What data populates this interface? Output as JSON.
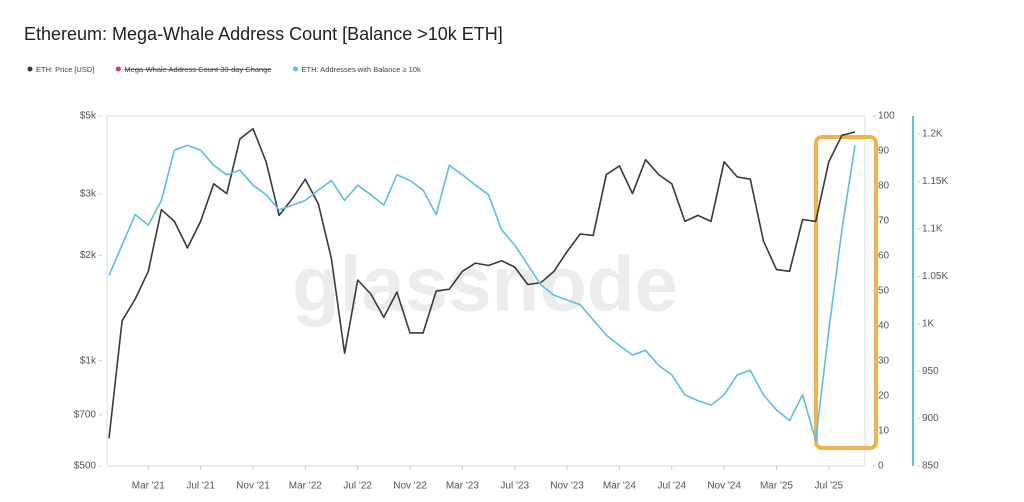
{
  "chart_data": {
    "type": "line",
    "title": "Ethereum: Mega-Whale Address Count [Balance >10k ETH]",
    "watermark": "glassnode",
    "x": [
      "2020-12",
      "2021-01",
      "2021-02",
      "2021-03",
      "2021-04",
      "2021-05",
      "2021-06",
      "2021-07",
      "2021-08",
      "2021-09",
      "2021-10",
      "2021-11",
      "2021-12",
      "2022-01",
      "2022-02",
      "2022-03",
      "2022-04",
      "2022-05",
      "2022-06",
      "2022-07",
      "2022-08",
      "2022-09",
      "2022-10",
      "2022-11",
      "2022-12",
      "2023-01",
      "2023-02",
      "2023-03",
      "2023-04",
      "2023-05",
      "2023-06",
      "2023-07",
      "2023-08",
      "2023-09",
      "2023-10",
      "2023-11",
      "2023-12",
      "2024-01",
      "2024-02",
      "2024-03",
      "2024-04",
      "2024-05",
      "2024-06",
      "2024-07",
      "2024-08",
      "2024-09",
      "2024-10",
      "2024-11",
      "2024-12",
      "2025-01",
      "2025-02",
      "2025-03",
      "2025-04",
      "2025-05",
      "2025-06",
      "2025-07",
      "2025-08",
      "2025-09"
    ],
    "xlim": [
      "2020-12",
      "2025-09"
    ],
    "xticks": [
      {
        "value": "2021-03",
        "label": "Mar '21"
      },
      {
        "value": "2021-07",
        "label": "Jul '21"
      },
      {
        "value": "2021-11",
        "label": "Nov '21"
      },
      {
        "value": "2022-03",
        "label": "Mar '22"
      },
      {
        "value": "2022-07",
        "label": "Jul '22"
      },
      {
        "value": "2022-11",
        "label": "Nov '22"
      },
      {
        "value": "2023-03",
        "label": "Mar '23"
      },
      {
        "value": "2023-07",
        "label": "Jul '23"
      },
      {
        "value": "2023-11",
        "label": "Nov '23"
      },
      {
        "value": "2024-03",
        "label": "Mar '24"
      },
      {
        "value": "2024-07",
        "label": "Jul '24"
      },
      {
        "value": "2024-11",
        "label": "Nov '24"
      },
      {
        "value": "2025-03",
        "label": "Mar '25"
      },
      {
        "value": "2025-07",
        "label": "Jul '25"
      }
    ],
    "ylog": true,
    "ylim": [
      500,
      5000
    ],
    "yticks": [
      {
        "value": 500,
        "label": "$500"
      },
      {
        "value": 700,
        "label": "$700"
      },
      {
        "value": 1000,
        "label": "$1k"
      },
      {
        "value": 2000,
        "label": "$2k"
      },
      {
        "value": 3000,
        "label": "$3k"
      },
      {
        "value": 5000,
        "label": "$5k"
      }
    ],
    "y2lim": [
      0,
      100
    ],
    "y2ticks": [
      0,
      10,
      20,
      30,
      40,
      50,
      60,
      70,
      80,
      90,
      100
    ],
    "y3lim": [
      850,
      1219
    ],
    "y3ticks": [
      850,
      900,
      950,
      {
        "value": 1000,
        "label": "1K"
      },
      {
        "value": 1050,
        "label": "1.05K"
      },
      {
        "value": 1100,
        "label": "1.1K"
      },
      {
        "value": 1150,
        "label": "1.15K"
      },
      {
        "value": 1200,
        "label": "1.2K"
      }
    ],
    "y3color": "#5bbfe6",
    "series": [
      {
        "name": "ETH: Price [USD]",
        "color": "#3a3a3a",
        "axis": "y",
        "values": [
          600,
          1300,
          1500,
          1800,
          2700,
          2500,
          2100,
          2500,
          3200,
          3000,
          4300,
          4600,
          3700,
          2600,
          2900,
          3300,
          2800,
          1950,
          1050,
          1700,
          1550,
          1330,
          1570,
          1200,
          1200,
          1580,
          1600,
          1800,
          1900,
          1870,
          1930,
          1850,
          1650,
          1670,
          1800,
          2050,
          2300,
          2280,
          3400,
          3600,
          3000,
          3750,
          3400,
          3200,
          2500,
          2600,
          2500,
          3700,
          3350,
          3300,
          2200,
          1820,
          1800,
          2530,
          2500,
          3700,
          4400,
          4500
        ]
      },
      {
        "name": "Mega-Whale Address Count 30-day Change",
        "color": "#d6336c",
        "axis": "y2",
        "hidden": true,
        "values": [
          null,
          null,
          null,
          null,
          null,
          null,
          null,
          null,
          null,
          null,
          null,
          null,
          null,
          null,
          null,
          null,
          null,
          null,
          null,
          null,
          null,
          null,
          null,
          null,
          null,
          null,
          null,
          null,
          null,
          null,
          null,
          null,
          null,
          null,
          null,
          null,
          null,
          null,
          null,
          null,
          null,
          null,
          null,
          null,
          null,
          null,
          null,
          null,
          null,
          null,
          null,
          null,
          null,
          null,
          null,
          null,
          null,
          null
        ]
      },
      {
        "name": "ETH: Addresses with Balance ≥ 10k",
        "color": "#5bbfe6",
        "axis": "y3",
        "values": [
          1051,
          1083,
          1115,
          1104,
          1130,
          1183,
          1188,
          1183,
          1167,
          1157,
          1162,
          1146,
          1136,
          1120,
          1125,
          1130,
          1141,
          1151,
          1130,
          1146,
          1136,
          1125,
          1157,
          1151,
          1141,
          1115,
          1167,
          1157,
          1146,
          1136,
          1099,
          1083,
          1062,
          1041,
          1030,
          1025,
          1020,
          1004,
          988,
          977,
          967,
          972,
          956,
          946,
          925,
          919,
          914,
          925,
          946,
          951,
          925,
          909,
          898,
          925,
          877,
          993,
          1099,
          1188
        ]
      }
    ]
  }
}
